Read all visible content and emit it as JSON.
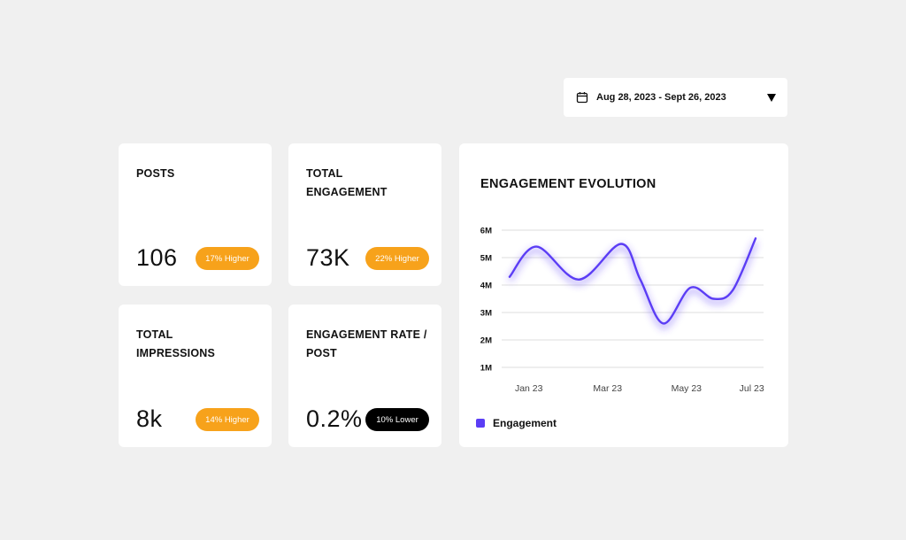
{
  "date_range": {
    "label": "Aug 28, 2023 - Sept 26, 2023",
    "icon": "calendar-icon",
    "caret_icon": "triangle-down-icon"
  },
  "stats": [
    {
      "title": "POSTS",
      "value": "106",
      "badge": "17% Higher",
      "trend": "higher"
    },
    {
      "title": "TOTAL\nENGAGEMENT",
      "value": "73K",
      "badge": "22% Higher",
      "trend": "higher"
    },
    {
      "title": "TOTAL\nIMPRESSIONS",
      "value": "8k",
      "badge": "14% Higher",
      "trend": "higher"
    },
    {
      "title": "ENGAGEMENT RATE /\nPOST",
      "value": "0.2%",
      "badge": "10% Lower",
      "trend": "lower"
    }
  ],
  "colors": {
    "background": "#f0f0f0",
    "card": "#ffffff",
    "higher_badge": "#f7a21b",
    "lower_badge": "#000000",
    "series": "#5b3df5"
  },
  "chart_data": {
    "type": "line",
    "title": "ENGAGEMENT EVOLUTION",
    "x_ticks": [
      "Jan 23",
      "Mar 23",
      "May 23",
      "Jul 23"
    ],
    "y_ticks": [
      "6M",
      "5M",
      "4M",
      "3M",
      "2M",
      "1M"
    ],
    "ylim": [
      1,
      6
    ],
    "grid": true,
    "legend_position": "bottom-left",
    "series": [
      {
        "name": "Engagement",
        "color": "#5b3df5",
        "points": [
          [
            0.0,
            4.3
          ],
          [
            0.7,
            5.4
          ],
          [
            1.8,
            4.2
          ],
          [
            2.9,
            5.5
          ],
          [
            3.4,
            4.2
          ],
          [
            4.0,
            2.6
          ],
          [
            4.7,
            3.9
          ],
          [
            5.3,
            3.5
          ],
          [
            5.8,
            3.8
          ],
          [
            6.4,
            5.7
          ]
        ]
      }
    ]
  }
}
